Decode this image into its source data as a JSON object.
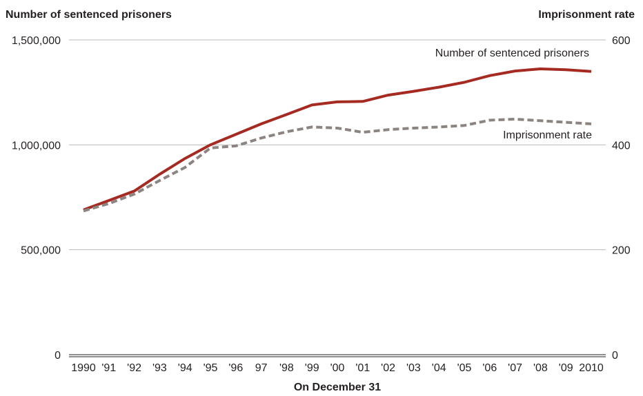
{
  "chart_data": {
    "type": "line",
    "ylabel_left": "Number of sentenced prisoners",
    "ylabel_right": "Imprisonment rate",
    "xlabel": "On December 31",
    "x": [
      "1990",
      "'91",
      "'92",
      "'93",
      "'94",
      "'95",
      "'96",
      "97",
      "'98",
      "'99",
      "'00",
      "'01",
      "'02",
      "'03",
      "'04",
      "'05",
      "'06",
      "'07",
      "'08",
      "'09",
      "2010"
    ],
    "ylim_left": [
      0,
      1500000
    ],
    "ylim_right": [
      0,
      600
    ],
    "left_ticks": [
      {
        "value": 0,
        "label": "0"
      },
      {
        "value": 500000,
        "label": "500,000"
      },
      {
        "value": 1000000,
        "label": "1,000,000"
      },
      {
        "value": 1500000,
        "label": "1,500,000"
      }
    ],
    "right_ticks": [
      {
        "value": 0,
        "label": "0"
      },
      {
        "value": 200,
        "label": "200"
      },
      {
        "value": 400,
        "label": "400"
      },
      {
        "value": 600,
        "label": "600"
      }
    ],
    "grid": true,
    "series": [
      {
        "name": "Number of sentenced prisoners",
        "axis": "left",
        "style": "solid",
        "color": "#a52a22",
        "values": [
          690000,
          735000,
          780000,
          860000,
          935000,
          1000000,
          1050000,
          1100000,
          1145000,
          1190000,
          1205000,
          1207000,
          1237000,
          1255000,
          1275000,
          1298000,
          1330000,
          1352000,
          1362000,
          1358000,
          1350000
        ]
      },
      {
        "name": "Imprisonment rate",
        "axis": "right",
        "style": "dashed",
        "color": "#8c8480",
        "values": [
          274,
          288,
          306,
          332,
          357,
          394,
          398,
          413,
          425,
          434,
          432,
          424,
          429,
          432,
          434,
          437,
          447,
          449,
          446,
          443,
          440
        ]
      }
    ]
  }
}
